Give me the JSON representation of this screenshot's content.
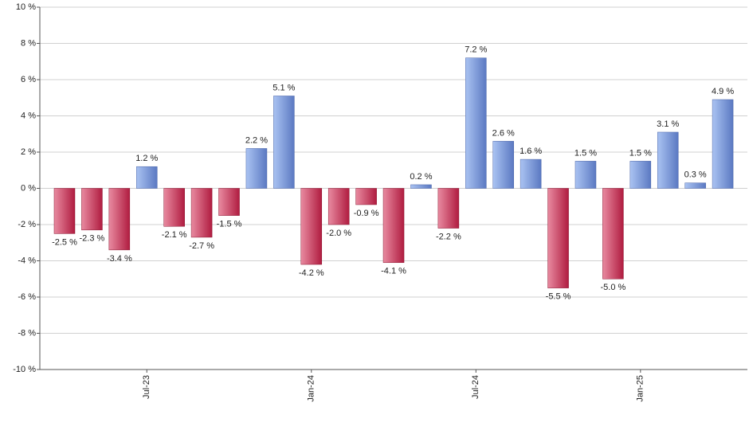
{
  "chart_data": {
    "type": "bar",
    "categories": [
      null,
      null,
      null,
      "Jul-23",
      null,
      null,
      null,
      null,
      null,
      "Jan-24",
      null,
      null,
      null,
      null,
      null,
      "Jul-24",
      null,
      null,
      null,
      null,
      null,
      "Jan-25",
      null,
      null,
      null
    ],
    "values": [
      -2.5,
      -2.3,
      -3.4,
      1.2,
      -2.1,
      -2.7,
      -1.5,
      2.2,
      5.1,
      -4.2,
      -2.0,
      -0.9,
      -4.1,
      0.2,
      -2.2,
      7.2,
      2.6,
      1.6,
      -5.5,
      1.5,
      -5.0,
      1.5,
      3.1,
      0.3,
      4.9
    ],
    "value_labels": [
      "-2.5 %",
      "-2.3 %",
      "-3.4 %",
      "1.2 %",
      "-2.1 %",
      "-2.7 %",
      "-1.5 %",
      "2.2 %",
      "5.1 %",
      "-4.2 %",
      "-2.0 %",
      "-0.9 %",
      "-4.1 %",
      "0.2 %",
      "-2.2 %",
      "7.2 %",
      "2.6 %",
      "1.6 %",
      "-5.5 %",
      "1.5 %",
      "-5.0 %",
      "1.5 %",
      "3.1 %",
      "0.3 %",
      "4.9 %"
    ],
    "positive_color": [
      "#aac3f2",
      "#5b79c2"
    ],
    "negative_color": [
      "#e88aa0",
      "#b01c40"
    ],
    "ylim": [
      -10,
      10
    ],
    "yticks": [
      {
        "value": -10,
        "label": "-10 %"
      },
      {
        "value": -8,
        "label": "-8 %"
      },
      {
        "value": -6,
        "label": "-6 %"
      },
      {
        "value": -4,
        "label": "-4 %"
      },
      {
        "value": -2,
        "label": "-2 %"
      },
      {
        "value": 0,
        "label": "0 %"
      },
      {
        "value": 2,
        "label": "2 %"
      },
      {
        "value": 4,
        "label": "4 %"
      },
      {
        "value": 6,
        "label": "6 %"
      },
      {
        "value": 8,
        "label": "8 %"
      },
      {
        "value": 10,
        "label": "10 %"
      }
    ],
    "grid": true
  }
}
